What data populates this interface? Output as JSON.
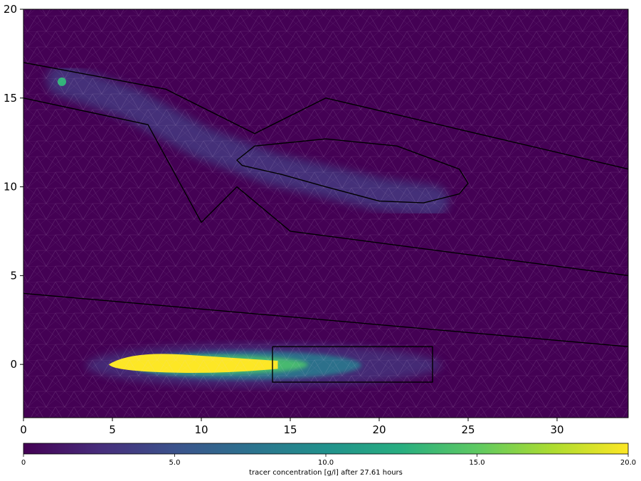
{
  "chart_data": {
    "type": "heatmap",
    "title": "",
    "xlabel": "",
    "ylabel": "",
    "xlim": [
      0,
      34
    ],
    "ylim": [
      -3,
      20
    ],
    "x_ticks": [
      0,
      5,
      10,
      15,
      20,
      25,
      30
    ],
    "y_ticks": [
      0,
      5,
      10,
      15,
      20
    ],
    "grid": false,
    "background_value": 0,
    "mesh": "triangular, light grey edges",
    "colormap": "viridis",
    "colorbar": {
      "label": "tracer concentration [g/l] after 27.61 hours",
      "min": 0,
      "max": 20,
      "ticks": [
        "0",
        "5.0",
        "10.0",
        "15.0",
        "20.0"
      ]
    },
    "plumes": [
      {
        "region": "upper branching channel",
        "source_point": [
          2,
          16
        ],
        "peak_value": 13,
        "typical_value": 3.5,
        "path": [
          [
            2.2,
            16
          ],
          [
            6,
            14.7
          ],
          [
            10,
            12.5
          ],
          [
            14,
            11
          ],
          [
            20,
            9.6
          ],
          [
            23,
            9.2
          ]
        ]
      },
      {
        "region": "lower plume",
        "source_point": [
          5,
          0
        ],
        "peak_value": 20,
        "typical_value": 8,
        "path": [
          [
            5,
            0
          ],
          [
            10,
            0
          ],
          [
            14.5,
            0
          ],
          [
            18,
            -0.1
          ],
          [
            22,
            -0.2
          ]
        ]
      }
    ],
    "outlines": [
      {
        "name": "channel upper boundary",
        "points": [
          [
            0,
            17
          ],
          [
            8,
            15.5
          ],
          [
            13,
            13
          ],
          [
            17,
            15
          ],
          [
            34,
            11
          ]
        ]
      },
      {
        "name": "channel lower boundary",
        "points": [
          [
            0,
            15
          ],
          [
            7,
            13.5
          ],
          [
            10,
            8
          ],
          [
            12,
            10
          ],
          [
            15,
            7.5
          ],
          [
            34,
            5
          ]
        ]
      },
      {
        "name": "island",
        "points": [
          [
            12,
            11.5
          ],
          [
            13,
            12.3
          ],
          [
            17,
            12.7
          ],
          [
            21,
            12.3
          ],
          [
            24.5,
            11
          ],
          [
            25,
            10.2
          ],
          [
            24.5,
            9.6
          ],
          [
            22.5,
            9.1
          ],
          [
            20,
            9.2
          ],
          [
            17,
            10
          ],
          [
            14.5,
            10.7
          ],
          [
            12.3,
            11.2
          ]
        ]
      },
      {
        "name": "lower layer boundary",
        "points": [
          [
            0,
            4
          ],
          [
            34,
            1
          ]
        ]
      },
      {
        "name": "observation box",
        "points": [
          [
            14,
            1
          ],
          [
            23,
            1
          ],
          [
            23,
            -1
          ],
          [
            14,
            -1
          ],
          [
            14,
            1
          ]
        ]
      }
    ]
  }
}
